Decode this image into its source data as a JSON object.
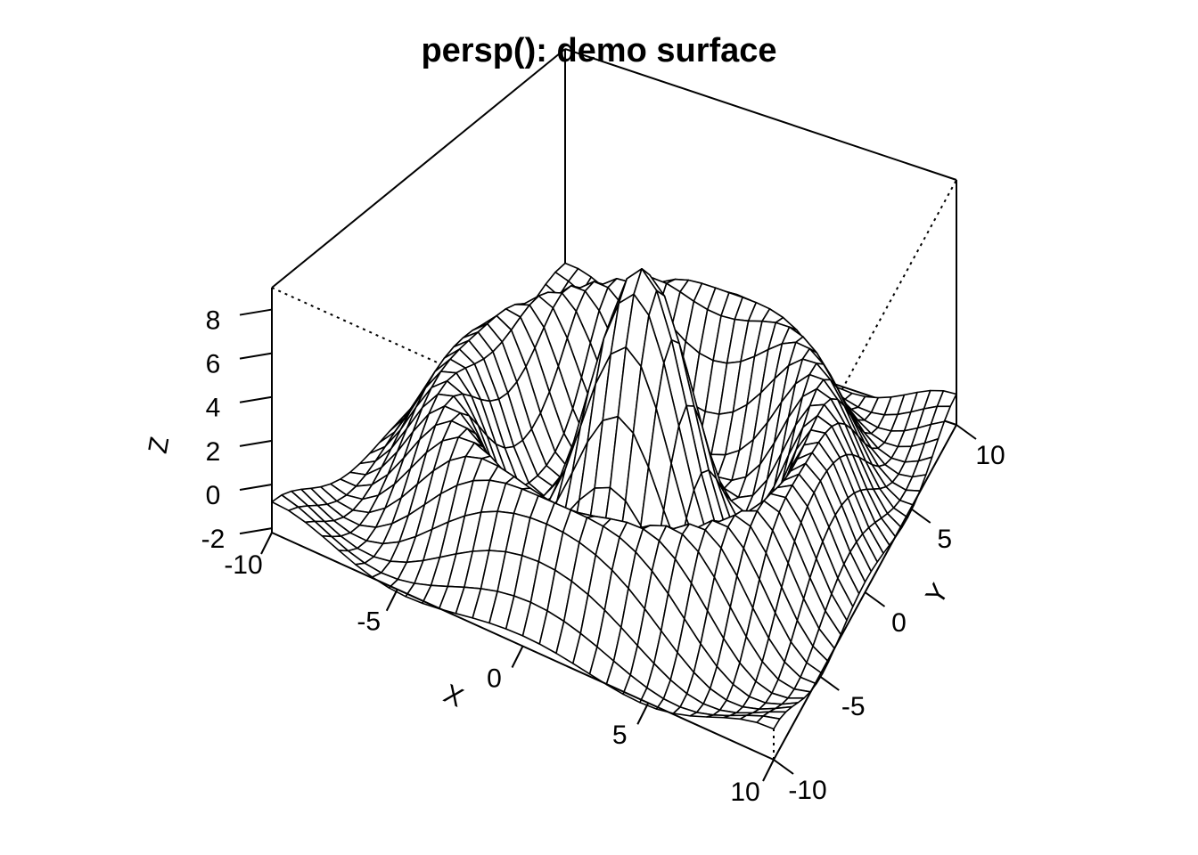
{
  "chart_data": {
    "type": "surface",
    "title": "persp(): demo surface",
    "xlabel": "X",
    "ylabel": "Y",
    "zlabel": "Z",
    "xlim": [
      -10,
      10
    ],
    "ylim": [
      -10,
      10
    ],
    "zlim": [
      -2.2,
      9.0
    ],
    "x_ticks": [
      "-10",
      "-5",
      "0",
      "5",
      "10"
    ],
    "y_ticks": [
      "-10",
      "-5",
      "0",
      "5",
      "10"
    ],
    "z_ticks": [
      "-2",
      "0",
      "2",
      "4",
      "6",
      "8"
    ],
    "grid_n": 30,
    "function": "10*sin(sqrt(x^2+y^2))/sqrt(x^2+y^2) + 3*exp(-((r-7)^2)/4) - 1.5",
    "peak_z": 8.5,
    "box": true,
    "colors": {
      "line": "#000000",
      "fill": "#ffffff"
    }
  }
}
